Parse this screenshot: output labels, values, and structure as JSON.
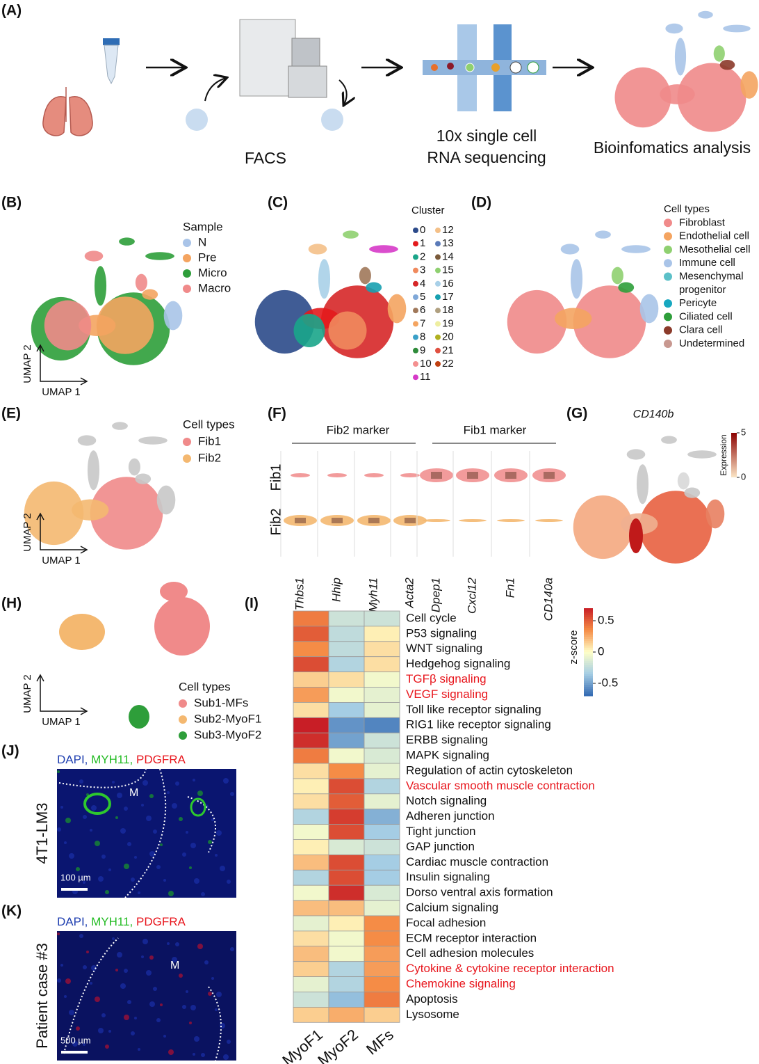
{
  "A": {
    "label": "(A)",
    "facs": "FACS",
    "seq": [
      "10x single cell",
      "RNA sequencing"
    ],
    "bio": "Bioinfomatics analysis"
  },
  "B": {
    "label": "(B)",
    "legend_title": "Sample",
    "axis_y": "UMAP 2",
    "axis_x": "UMAP 1",
    "items": [
      {
        "name": "N",
        "color": "#a9c4e8"
      },
      {
        "name": "Pre",
        "color": "#f4a460"
      },
      {
        "name": "Micro",
        "color": "#2e9e3a"
      },
      {
        "name": "Macro",
        "color": "#f08a8a"
      }
    ]
  },
  "C": {
    "label": "(C)",
    "legend_title": "Cluster",
    "items": [
      {
        "name": "0",
        "color": "#2b4a8a"
      },
      {
        "name": "1",
        "color": "#e31a1c"
      },
      {
        "name": "2",
        "color": "#1aa589"
      },
      {
        "name": "3",
        "color": "#f08a5d"
      },
      {
        "name": "4",
        "color": "#d62728"
      },
      {
        "name": "5",
        "color": "#7fa8d8"
      },
      {
        "name": "6",
        "color": "#a0785a"
      },
      {
        "name": "7",
        "color": "#f4a460"
      },
      {
        "name": "8",
        "color": "#3aa0c8"
      },
      {
        "name": "9",
        "color": "#2e8b3a"
      },
      {
        "name": "10",
        "color": "#f49090"
      },
      {
        "name": "11",
        "color": "#d63ac8"
      },
      {
        "name": "12",
        "color": "#f4c088"
      },
      {
        "name": "13",
        "color": "#5a7ab8"
      },
      {
        "name": "14",
        "color": "#7a5a3a"
      },
      {
        "name": "15",
        "color": "#8fd070"
      },
      {
        "name": "16",
        "color": "#a8d0e8"
      },
      {
        "name": "17",
        "color": "#17a0b0"
      },
      {
        "name": "18",
        "color": "#b0a080"
      },
      {
        "name": "19",
        "color": "#eeeea0"
      },
      {
        "name": "20",
        "color": "#b0b020"
      },
      {
        "name": "21",
        "color": "#e05040"
      },
      {
        "name": "22",
        "color": "#c04010"
      }
    ]
  },
  "D": {
    "label": "(D)",
    "legend_title": "Cell types",
    "items": [
      {
        "name": "Fibroblast",
        "color": "#f08a8a"
      },
      {
        "name": "Endothelial cell",
        "color": "#f4a460"
      },
      {
        "name": "Mesothelial cell",
        "color": "#8fd070"
      },
      {
        "name": "Immune cell",
        "color": "#a9c4e8"
      },
      {
        "name": "Mesenchymal",
        "color": "#5cc0c8"
      },
      {
        "name": "progenitor",
        "color": null
      },
      {
        "name": "Pericyte",
        "color": "#17a8c0"
      },
      {
        "name": "Ciliated cell",
        "color": "#2e9e3a"
      },
      {
        "name": "Clara cell",
        "color": "#8b3a2a"
      },
      {
        "name": "Undetermined",
        "color": "#c89890"
      }
    ]
  },
  "E": {
    "label": "(E)",
    "legend_title": "Cell types",
    "axis_y": "UMAP 2",
    "axis_x": "UMAP 1",
    "items": [
      {
        "name": "Fib1",
        "color": "#f08a8a"
      },
      {
        "name": "Fib2",
        "color": "#f4b870"
      }
    ]
  },
  "F": {
    "label": "(F)",
    "groups": [
      "Fib2 marker",
      "Fib1 marker"
    ],
    "rows": [
      "Fib1",
      "Fib2"
    ],
    "genes": [
      "Thbs1",
      "Hhip",
      "Myh11",
      "Acta2",
      "Dpep1",
      "Cxcl12",
      "Fn1",
      "CD140a"
    ]
  },
  "G": {
    "label": "(G)",
    "gene": "CD140b",
    "colorbar_title": "Expression",
    "clim": [
      0,
      5
    ],
    "cticks": [
      5,
      0
    ]
  },
  "H": {
    "label": "(H)",
    "legend_title": "Cell types",
    "axis_y": "UMAP 2",
    "axis_x": "UMAP 1",
    "items": [
      {
        "name": "Sub1-MFs",
        "color": "#f08a8a"
      },
      {
        "name": "Sub2-MyoF1",
        "color": "#f4b870"
      },
      {
        "name": "Sub3-MyoF2",
        "color": "#2e9e3a"
      }
    ]
  },
  "I": {
    "label": "(I)",
    "columns": [
      "MyoF1",
      "MyoF2",
      "MFs"
    ],
    "colorbar_title": "z-score",
    "zlim": [
      -0.7,
      0.7
    ],
    "zticks": [
      0.5,
      0,
      -0.5
    ],
    "highlight_color": "#e8161d",
    "highlighted_rows": [
      4,
      5,
      11,
      23,
      24
    ],
    "rows": [
      "Cell cycle",
      "P53 signaling",
      "WNT signaling",
      "Hedgehog signaling",
      "TGFβ signaling",
      "VEGF signaling",
      "Toll like receptor signaling",
      "RIG1 like receptor signaling",
      "ERBB signaling",
      "MAPK signaling",
      "Regulation of actin cytoskeleton",
      "Vascular smooth muscle contraction",
      "Notch signaling",
      "Adheren junction",
      "Tight junction",
      "GAP junction",
      "Cardiac muscle contraction",
      "Insulin signaling",
      "Dorso ventral axis formation",
      "Calcium signaling",
      "Focal adhesion",
      "ECM receptor interaction",
      "Cell  adhesion molecules",
      "Cytokine & cytokine receptor interaction",
      "Chemokine signaling",
      "Apoptosis",
      "Lysosome"
    ],
    "values": [
      [
        0.4,
        -0.2,
        -0.2
      ],
      [
        0.5,
        -0.25,
        0.05
      ],
      [
        0.35,
        -0.25,
        0.1
      ],
      [
        0.55,
        -0.3,
        0.1
      ],
      [
        0.15,
        0.1,
        -0.05
      ],
      [
        0.3,
        -0.05,
        -0.1
      ],
      [
        0.1,
        -0.35,
        -0.1
      ],
      [
        0.7,
        -0.55,
        -0.6
      ],
      [
        0.65,
        -0.5,
        -0.2
      ],
      [
        0.4,
        -0.05,
        -0.15
      ],
      [
        0.1,
        0.35,
        -0.1
      ],
      [
        0.05,
        0.55,
        -0.3
      ],
      [
        0.1,
        0.5,
        -0.1
      ],
      [
        -0.3,
        0.6,
        -0.45
      ],
      [
        -0.05,
        0.55,
        -0.35
      ],
      [
        0.05,
        -0.15,
        -0.2
      ],
      [
        0.2,
        0.55,
        -0.35
      ],
      [
        -0.3,
        0.55,
        -0.35
      ],
      [
        -0.05,
        0.65,
        -0.15
      ],
      [
        0.2,
        0.2,
        -0.1
      ],
      [
        -0.1,
        0.05,
        0.35
      ],
      [
        0.1,
        -0.05,
        0.35
      ],
      [
        0.2,
        -0.05,
        0.3
      ],
      [
        0.15,
        -0.3,
        0.3
      ],
      [
        -0.1,
        -0.3,
        0.35
      ],
      [
        -0.2,
        -0.4,
        0.4
      ],
      [
        0.15,
        0.25,
        0.15
      ]
    ]
  },
  "J": {
    "label": "(J)",
    "stains": [
      {
        "text": "DAPI, ",
        "color": "#1f3fb0"
      },
      {
        "text": "MYH11, ",
        "color": "#22bb22"
      },
      {
        "text": "PDGFRA",
        "color": "#e8161d"
      }
    ],
    "sample": "4T1-LM3",
    "region": "M",
    "scale": "100 µm"
  },
  "K": {
    "label": "(K)",
    "stains": [
      {
        "text": "DAPI, ",
        "color": "#1f3fb0"
      },
      {
        "text": "MYH11, ",
        "color": "#22bb22"
      },
      {
        "text": "PDGFRA",
        "color": "#e8161d"
      }
    ],
    "sample": "Patient case #3",
    "region": "M",
    "scale": "500 µm"
  }
}
